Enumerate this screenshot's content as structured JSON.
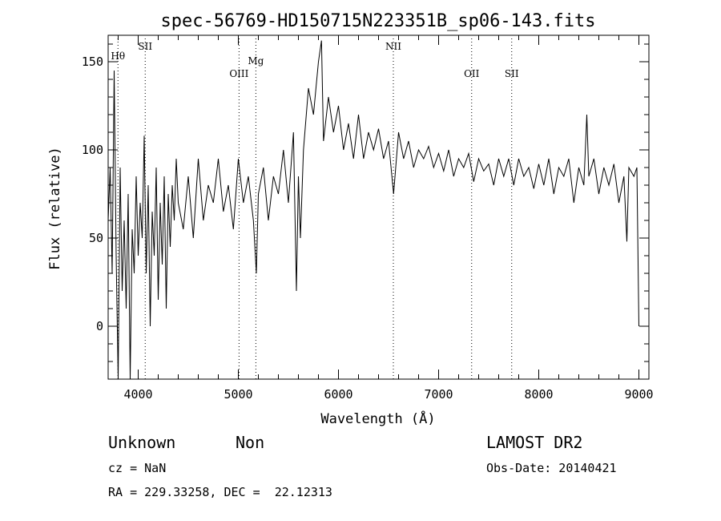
{
  "chart_data": {
    "type": "line",
    "title": "spec-56769-HD150715N223351B_sp06-143.fits",
    "xlabel": "Wavelength (Å)",
    "ylabel": "Flux (relative)",
    "xlim": [
      3700,
      9100
    ],
    "ylim": [
      -30,
      165
    ],
    "xticks": [
      4000,
      5000,
      6000,
      7000,
      8000,
      9000
    ],
    "yticks": [
      0,
      50,
      100,
      150
    ],
    "grid": false,
    "line_color": "#000000",
    "series": [
      {
        "x": [
          3700,
          3720,
          3740,
          3760,
          3780,
          3800,
          3820,
          3840,
          3860,
          3880,
          3900,
          3920,
          3940,
          3960,
          3980,
          4000,
          4020,
          4040,
          4060,
          4080,
          4100,
          4120,
          4140,
          4160,
          4180,
          4200,
          4220,
          4240,
          4260,
          4280,
          4300,
          4320,
          4340,
          4360,
          4380,
          4400,
          4450,
          4500,
          4550,
          4600,
          4650,
          4700,
          4750,
          4800,
          4850,
          4900,
          4950,
          5000,
          5050,
          5100,
          5150,
          5180,
          5200,
          5250,
          5300,
          5350,
          5400,
          5450,
          5500,
          5550,
          5580,
          5600,
          5620,
          5650,
          5700,
          5750,
          5800,
          5830,
          5850,
          5900,
          5950,
          6000,
          6050,
          6100,
          6150,
          6200,
          6250,
          6300,
          6350,
          6400,
          6450,
          6500,
          6550,
          6600,
          6650,
          6700,
          6750,
          6800,
          6850,
          6900,
          6950,
          7000,
          7050,
          7100,
          7150,
          7200,
          7250,
          7300,
          7350,
          7400,
          7450,
          7500,
          7550,
          7600,
          7650,
          7700,
          7750,
          7800,
          7850,
          7900,
          7950,
          8000,
          8050,
          8100,
          8150,
          8200,
          8250,
          8300,
          8350,
          8400,
          8450,
          8480,
          8500,
          8550,
          8600,
          8650,
          8700,
          8750,
          8800,
          8850,
          8880,
          8900,
          8950,
          8980,
          9000
        ],
        "y": [
          60,
          90,
          30,
          145,
          40,
          -30,
          90,
          20,
          60,
          10,
          75,
          -40,
          55,
          30,
          85,
          40,
          70,
          50,
          108,
          30,
          80,
          0,
          65,
          40,
          90,
          15,
          70,
          35,
          85,
          10,
          75,
          45,
          80,
          60,
          95,
          70,
          55,
          85,
          50,
          95,
          60,
          80,
          70,
          95,
          65,
          80,
          55,
          95,
          70,
          85,
          60,
          30,
          75,
          90,
          60,
          85,
          75,
          100,
          70,
          110,
          20,
          85,
          50,
          100,
          135,
          120,
          150,
          162,
          105,
          130,
          110,
          125,
          100,
          115,
          95,
          120,
          95,
          110,
          100,
          112,
          95,
          105,
          75,
          110,
          95,
          105,
          90,
          100,
          95,
          102,
          90,
          98,
          88,
          100,
          85,
          95,
          90,
          98,
          82,
          95,
          88,
          92,
          80,
          95,
          85,
          95,
          80,
          95,
          85,
          90,
          78,
          92,
          80,
          95,
          75,
          90,
          85,
          95,
          70,
          90,
          80,
          120,
          85,
          95,
          75,
          90,
          80,
          92,
          70,
          85,
          48,
          90,
          85,
          90,
          0
        ]
      }
    ],
    "lines": [
      {
        "label": "Hθ",
        "x": 3798
      },
      {
        "label": "SII",
        "x": 4070
      },
      {
        "label": "OIII",
        "x": 5007
      },
      {
        "label": "Mg",
        "x": 5175
      },
      {
        "label": "NII",
        "x": 6548
      },
      {
        "label": "OII",
        "x": 7330
      },
      {
        "label": "SII",
        "x": 7730
      }
    ]
  },
  "info": {
    "class": "Unknown",
    "subclass": "Non",
    "cz": "cz = NaN",
    "radec": "RA = 229.33258, DEC =  22.12313",
    "survey": "LAMOST DR2",
    "obsdate": "Obs-Date: 20140421"
  }
}
